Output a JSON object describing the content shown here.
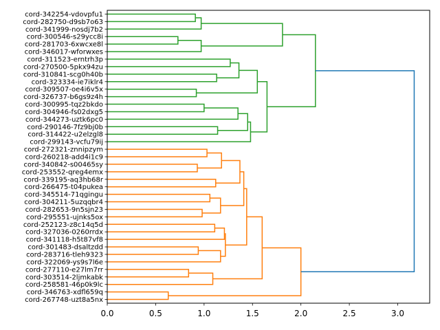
{
  "chart_data": {
    "type": "dendrogram",
    "orientation": "left",
    "title": "",
    "xlabel": "",
    "ylabel": "",
    "xlim": [
      0,
      3.33
    ],
    "xticks": [
      0.0,
      0.5,
      1.0,
      1.5,
      2.0,
      2.5,
      3.0
    ],
    "xtick_labels": [
      "0.0",
      "0.5",
      "1.0",
      "1.5",
      "2.0",
      "2.5",
      "3.0"
    ],
    "grid": false,
    "colors": {
      "cluster_a": "#2ca02c",
      "cluster_b": "#ff7f0e",
      "root": "#1f77b4"
    },
    "leaves": [
      "cord-342254-vdovpfu1",
      "cord-282750-d9sb7o63",
      "cord-341999-nosdj7b2",
      "cord-300546-s29ycc8i",
      "cord-281703-6xwcxe8l",
      "cord-346017-wforwxes",
      "cord-311523-erntrh3p",
      "cord-270500-5pkx94zu",
      "cord-310841-scg0h40b",
      "cord-323334-ie7iklr4",
      "cord-309507-oe4i6v5x",
      "cord-326737-b6gs9z4h",
      "cord-300995-tqz2bkdo",
      "cord-304946-fs02dxg5",
      "cord-344273-uztk6pc0",
      "cord-290146-7fz9bj0b",
      "cord-314422-u2elzgl8",
      "cord-299143-vcfu79ij",
      "cord-272321-znnipzym",
      "cord-260218-add4i1c9",
      "cord-340842-s00465sy",
      "cord-253552-qreg4emx",
      "cord-339195-aq3hb68r",
      "cord-266475-t04pukea",
      "cord-345514-71qgingu",
      "cord-304211-5uzqqbr4",
      "cord-282653-9n5sjn23",
      "cord-295551-ujnks5ox",
      "cord-252123-z8c14q5d",
      "cord-327036-0260rrdx",
      "cord-341118-h5t87vf8",
      "cord-301483-dsaltzdd",
      "cord-283716-tleh9323",
      "cord-322069-ys9s7l6e",
      "cord-277110-e27lm7rr",
      "cord-303514-2ljmkabk",
      "cord-258581-46p0k9lc",
      "cord-346763-xdfl659q",
      "cord-267748-uzt8a5nx"
    ],
    "tree": {
      "h": 3.17,
      "c": "root",
      "ch": [
        {
          "h": 2.15,
          "c": "cluster_a",
          "ch": [
            {
              "h": 1.81,
              "c": "cluster_a",
              "ch": [
                {
                  "h": 0.97,
                  "c": "cluster_a",
                  "ch": [
                    {
                      "h": 0.91,
                      "c": "cluster_a",
                      "ch": [
                        0,
                        1
                      ]
                    },
                    2
                  ]
                },
                {
                  "h": 0.97,
                  "c": "cluster_a",
                  "ch": [
                    {
                      "h": 0.73,
                      "c": "cluster_a",
                      "ch": [
                        3,
                        4
                      ]
                    },
                    5
                  ]
                }
              ]
            },
            {
              "h": 1.65,
              "c": "cluster_a",
              "ch": [
                {
                  "h": 1.55,
                  "c": "cluster_a",
                  "ch": [
                    {
                      "h": 1.36,
                      "c": "cluster_a",
                      "ch": [
                        {
                          "h": 1.27,
                          "c": "cluster_a",
                          "ch": [
                            6,
                            7
                          ]
                        },
                        {
                          "h": 1.13,
                          "c": "cluster_a",
                          "ch": [
                            8,
                            9
                          ]
                        }
                      ]
                    },
                    {
                      "h": 0.92,
                      "c": "cluster_a",
                      "ch": [
                        10,
                        11
                      ]
                    }
                  ]
                },
                {
                  "h": 1.48,
                  "c": "cluster_a",
                  "ch": [
                    {
                      "h": 1.45,
                      "c": "cluster_a",
                      "ch": [
                        {
                          "h": 1.35,
                          "c": "cluster_a",
                          "ch": [
                            {
                              "h": 1.0,
                              "c": "cluster_a",
                              "ch": [
                                12,
                                13
                              ]
                            },
                            14
                          ]
                        },
                        {
                          "h": 1.14,
                          "c": "cluster_a",
                          "ch": [
                            15,
                            16
                          ]
                        }
                      ]
                    },
                    17
                  ]
                }
              ]
            }
          ]
        },
        {
          "h": 2.0,
          "c": "cluster_b",
          "ch": [
            {
              "h": 1.6,
              "c": "cluster_b",
              "ch": [
                {
                  "h": 1.44,
                  "c": "cluster_b",
                  "ch": [
                    {
                      "h": 1.41,
                      "c": "cluster_b",
                      "ch": [
                        {
                          "h": 1.37,
                          "c": "cluster_b",
                          "ch": [
                            {
                              "h": 1.18,
                              "c": "cluster_b",
                              "ch": [
                                {
                                  "h": 1.03,
                                  "c": "cluster_b",
                                  "ch": [
                                    18,
                                    19
                                  ]
                                },
                                {
                                  "h": 0.93,
                                  "c": "cluster_b",
                                  "ch": [
                                    20,
                                    21
                                  ]
                                }
                              ]
                            },
                            {
                              "h": 1.12,
                              "c": "cluster_b",
                              "ch": [
                                22,
                                23
                              ]
                            }
                          ]
                        },
                        {
                          "h": 1.17,
                          "c": "cluster_b",
                          "ch": [
                            {
                              "h": 1.06,
                              "c": "cluster_b",
                              "ch": [
                                24,
                                25
                              ]
                            },
                            {
                              "h": 0.98,
                              "c": "cluster_b",
                              "ch": [
                                26,
                                27
                              ]
                            }
                          ]
                        }
                      ]
                    },
                    {
                      "h": 1.22,
                      "c": "cluster_b",
                      "ch": [
                        {
                          "h": 1.21,
                          "c": "cluster_b",
                          "ch": [
                            {
                              "h": 1.11,
                              "c": "cluster_b",
                              "ch": [
                                28,
                                29
                              ]
                            },
                            30
                          ]
                        },
                        {
                          "h": 1.17,
                          "c": "cluster_b",
                          "ch": [
                            {
                              "h": 0.94,
                              "c": "cluster_b",
                              "ch": [
                                31,
                                32
                              ]
                            },
                            33
                          ]
                        }
                      ]
                    }
                  ]
                },
                {
                  "h": 1.09,
                  "c": "cluster_b",
                  "ch": [
                    {
                      "h": 0.84,
                      "c": "cluster_b",
                      "ch": [
                        34,
                        35
                      ]
                    },
                    36
                  ]
                }
              ]
            },
            {
              "h": 0.63,
              "c": "cluster_b",
              "ch": [
                37,
                38
              ]
            }
          ]
        }
      ]
    }
  }
}
